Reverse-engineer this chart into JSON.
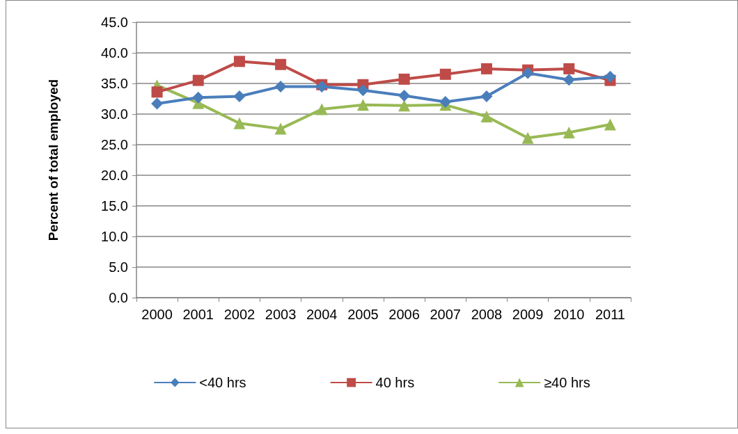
{
  "chart_data": {
    "type": "line",
    "ylabel": "Percent of total employed",
    "categories": [
      "2000",
      "2001",
      "2002",
      "2003",
      "2004",
      "2005",
      "2006",
      "2007",
      "2008",
      "2009",
      "2010",
      "2011"
    ],
    "series": [
      {
        "name": "<40 hrs",
        "color": "#4a7ebb",
        "marker": "diamond",
        "values": [
          31.7,
          32.7,
          32.9,
          34.5,
          34.5,
          33.9,
          33.0,
          32.0,
          32.9,
          36.7,
          35.6,
          36.1
        ]
      },
      {
        "name": "40 hrs",
        "color": "#be4b48",
        "marker": "square",
        "values": [
          33.6,
          35.5,
          38.6,
          38.1,
          34.8,
          34.8,
          35.7,
          36.5,
          37.4,
          37.2,
          37.4,
          35.5
        ]
      },
      {
        "name": "≥40 hrs",
        "color": "#98b954",
        "marker": "triangle",
        "values": [
          34.7,
          31.8,
          28.5,
          27.6,
          30.8,
          31.5,
          31.4,
          31.5,
          29.6,
          26.1,
          27.0,
          28.3
        ]
      }
    ],
    "ylim": [
      0,
      45
    ],
    "yticks": [
      {
        "value": 0,
        "label": "0.0"
      },
      {
        "value": 5,
        "label": "5.0"
      },
      {
        "value": 10,
        "label": "10.0"
      },
      {
        "value": 15,
        "label": "15.0"
      },
      {
        "value": 20,
        "label": "20.0"
      },
      {
        "value": 25,
        "label": "25.0"
      },
      {
        "value": 30,
        "label": "30.0"
      },
      {
        "value": 35,
        "label": "35.0"
      },
      {
        "value": 40,
        "label": "40.0"
      },
      {
        "value": 45,
        "label": "45.0"
      }
    ],
    "grid": "y",
    "legend": "bottom"
  }
}
